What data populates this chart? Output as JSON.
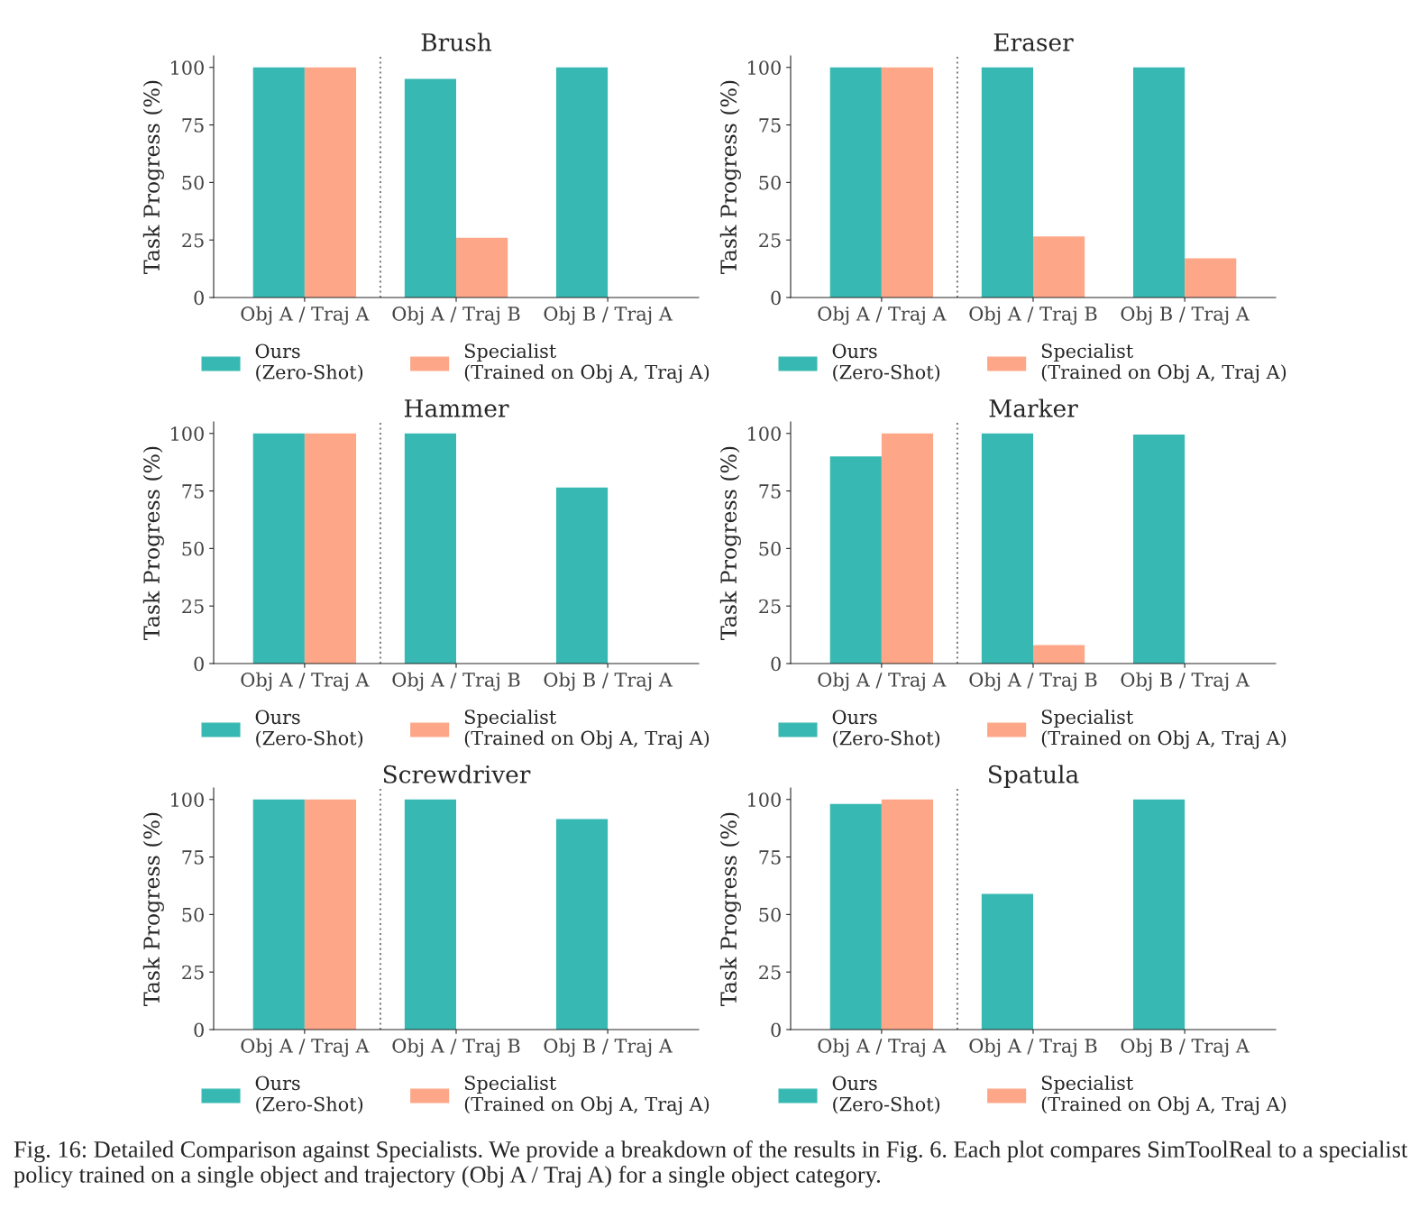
{
  "chart_data": [
    {
      "type": "bar",
      "title": "Brush",
      "ylabel": "Task Progress (%)",
      "categories": [
        "Obj A / Traj A",
        "Obj A / Traj B",
        "Obj B / Traj A"
      ],
      "ylim": [
        0,
        105
      ],
      "yticks": [
        0,
        25,
        50,
        75,
        100
      ],
      "legend": "bottom",
      "grid": false,
      "series": [
        {
          "name": "Ours\n(Zero-Shot)",
          "color": "#37b8b2",
          "values": [
            100,
            95,
            100
          ]
        },
        {
          "name": "Specialist\n(Trained on Obj A, Traj A)",
          "color": "#fea788",
          "values": [
            100,
            26,
            0
          ]
        }
      ]
    },
    {
      "type": "bar",
      "title": "Eraser",
      "ylabel": "Task Progress (%)",
      "categories": [
        "Obj A / Traj A",
        "Obj A / Traj B",
        "Obj B / Traj A"
      ],
      "ylim": [
        0,
        105
      ],
      "yticks": [
        0,
        25,
        50,
        75,
        100
      ],
      "legend": "bottom",
      "grid": false,
      "series": [
        {
          "name": "Ours\n(Zero-Shot)",
          "color": "#37b8b2",
          "values": [
            100,
            100,
            100
          ]
        },
        {
          "name": "Specialist\n(Trained on Obj A, Traj A)",
          "color": "#fea788",
          "values": [
            100,
            26.5,
            17
          ]
        }
      ]
    },
    {
      "type": "bar",
      "title": "Hammer",
      "ylabel": "Task Progress (%)",
      "categories": [
        "Obj A / Traj A",
        "Obj A / Traj B",
        "Obj B / Traj A"
      ],
      "ylim": [
        0,
        105
      ],
      "yticks": [
        0,
        25,
        50,
        75,
        100
      ],
      "legend": "bottom",
      "grid": false,
      "series": [
        {
          "name": "Ours\n(Zero-Shot)",
          "color": "#37b8b2",
          "values": [
            100,
            100,
            76.5
          ]
        },
        {
          "name": "Specialist\n(Trained on Obj A, Traj A)",
          "color": "#fea788",
          "values": [
            100,
            0,
            0
          ]
        }
      ]
    },
    {
      "type": "bar",
      "title": "Marker",
      "ylabel": "Task Progress (%)",
      "categories": [
        "Obj A / Traj A",
        "Obj A / Traj B",
        "Obj B / Traj A"
      ],
      "ylim": [
        0,
        105
      ],
      "yticks": [
        0,
        25,
        50,
        75,
        100
      ],
      "legend": "bottom",
      "grid": false,
      "series": [
        {
          "name": "Ours\n(Zero-Shot)",
          "color": "#37b8b2",
          "values": [
            90,
            100,
            99.5
          ]
        },
        {
          "name": "Specialist\n(Trained on Obj A, Traj A)",
          "color": "#fea788",
          "values": [
            100,
            8,
            0
          ]
        }
      ]
    },
    {
      "type": "bar",
      "title": "Screwdriver",
      "ylabel": "Task Progress (%)",
      "categories": [
        "Obj A / Traj A",
        "Obj A / Traj B",
        "Obj B / Traj A"
      ],
      "ylim": [
        0,
        105
      ],
      "yticks": [
        0,
        25,
        50,
        75,
        100
      ],
      "legend": "bottom",
      "grid": false,
      "series": [
        {
          "name": "Ours\n(Zero-Shot)",
          "color": "#37b8b2",
          "values": [
            100,
            100,
            91.5
          ]
        },
        {
          "name": "Specialist\n(Trained on Obj A, Traj A)",
          "color": "#fea788",
          "values": [
            100,
            0,
            0
          ]
        }
      ]
    },
    {
      "type": "bar",
      "title": "Spatula",
      "ylabel": "Task Progress (%)",
      "categories": [
        "Obj A / Traj A",
        "Obj A / Traj B",
        "Obj B / Traj A"
      ],
      "ylim": [
        0,
        105
      ],
      "yticks": [
        0,
        25,
        50,
        75,
        100
      ],
      "legend": "bottom",
      "grid": false,
      "series": [
        {
          "name": "Ours\n(Zero-Shot)",
          "color": "#37b8b2",
          "values": [
            98,
            59,
            100
          ]
        },
        {
          "name": "Specialist\n(Trained on Obj A, Traj A)",
          "color": "#fea788",
          "values": [
            100,
            0,
            0
          ]
        }
      ],
      "annotations": [
        "Fig. 16: Detailed Comparison against Specialists. We provide a breakdown of the results in Fig. 6. Each plot compares SimToolReal to a specialist policy trained on a single object and trajectory (Obj A / Traj A) for a single object category."
      ]
    }
  ]
}
